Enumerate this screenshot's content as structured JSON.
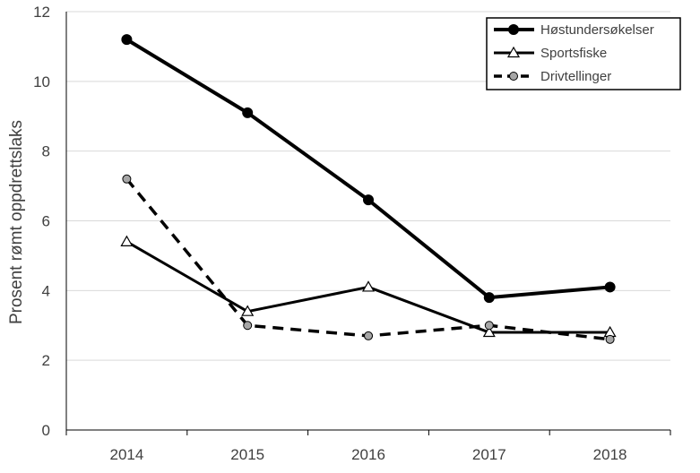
{
  "chart_data": {
    "type": "line",
    "title": "",
    "xlabel": "",
    "ylabel": "Prosent rømt oppdrettslaks",
    "categories": [
      "2014",
      "2015",
      "2016",
      "2017",
      "2018"
    ],
    "ylim": [
      0,
      12
    ],
    "yticks": [
      0,
      2,
      4,
      6,
      8,
      10,
      12
    ],
    "grid": "horizontal",
    "legend_position": "top-right",
    "series": [
      {
        "name": "Høstundersøkelser",
        "values": [
          11.2,
          9.1,
          6.6,
          3.8,
          4.1
        ],
        "line_style": "solid-thick",
        "marker": "filled-circle",
        "color": "#000000"
      },
      {
        "name": "Sportsfiske",
        "values": [
          5.4,
          3.4,
          4.1,
          2.8,
          2.8
        ],
        "line_style": "solid",
        "marker": "open-triangle",
        "color": "#000000"
      },
      {
        "name": "Drivtellinger",
        "values": [
          7.2,
          3.0,
          2.7,
          3.0,
          2.6
        ],
        "line_style": "dashed",
        "marker": "gray-circle",
        "color": "#000000",
        "marker_fill": "#a6a6a6"
      }
    ]
  }
}
